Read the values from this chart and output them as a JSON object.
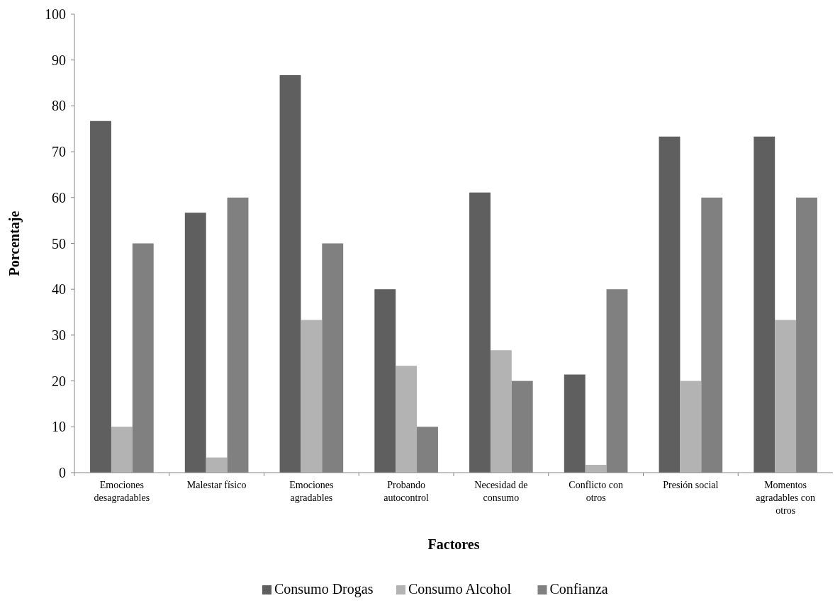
{
  "chart_data": {
    "type": "bar",
    "xlabel": "Factores",
    "ylabel": "Porcentaje",
    "categories": [
      "Emociones desagradables",
      "Malestar físico",
      "Emociones agradables",
      "Probando autocontrol",
      "Necesidad de consumo",
      "Conflicto con otros",
      "Presión social",
      "Momentos agradables con otros"
    ],
    "series": [
      {
        "name": "Consumo Drogas",
        "color": "#5f5f5f",
        "values": [
          76.7,
          56.7,
          86.7,
          40,
          61.1,
          21.4,
          73.3,
          73.3
        ]
      },
      {
        "name": "Consumo Alcohol",
        "color": "#b3b3b3",
        "values": [
          10,
          3.3,
          33.3,
          23.3,
          26.7,
          1.7,
          20,
          33.3
        ]
      },
      {
        "name": "Confianza",
        "color": "#808080",
        "values": [
          50,
          60,
          50,
          10,
          20,
          40,
          60,
          60
        ]
      }
    ],
    "ylim": [
      0,
      100
    ],
    "yticks": [
      0,
      10,
      20,
      30,
      40,
      50,
      60,
      70,
      80,
      90,
      100
    ],
    "grid": false,
    "legend": "bottom"
  }
}
